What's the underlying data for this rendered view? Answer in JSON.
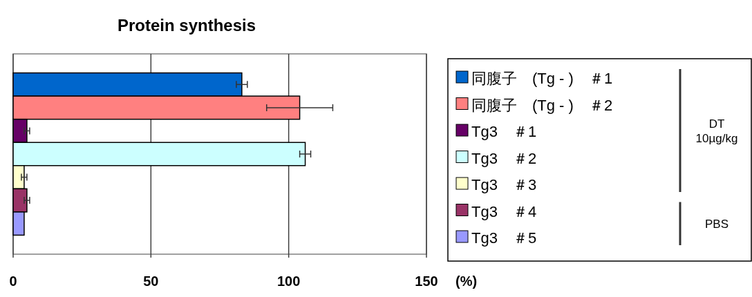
{
  "chart_data": {
    "type": "bar",
    "orientation": "horizontal",
    "title": "Protein synthesis",
    "xlabel": "(%)",
    "categories": [
      null
    ],
    "series": [
      {
        "name": "同腹子　(Tg - )　＃1",
        "color": "#0066cc",
        "values": [
          83
        ],
        "errors": [
          2
        ]
      },
      {
        "name": "同腹子　(Tg - )　＃2",
        "color": "#ff8080",
        "values": [
          104
        ],
        "errors": [
          12
        ]
      },
      {
        "name": "Tg3　＃1",
        "color": "#660066",
        "values": [
          5
        ],
        "errors": [
          1
        ]
      },
      {
        "name": "Tg3　＃2",
        "color": "#ccffff",
        "values": [
          106
        ],
        "errors": [
          2
        ]
      },
      {
        "name": "Tg3　＃3",
        "color": "#ffffcc",
        "values": [
          4
        ],
        "errors": [
          1
        ]
      },
      {
        "name": "Tg3　＃4",
        "color": "#993366",
        "values": [
          5
        ],
        "errors": [
          1
        ]
      },
      {
        "name": "Tg3　＃5",
        "color": "#9999ff",
        "values": [
          4
        ],
        "errors": [
          null
        ]
      }
    ],
    "xlim": [
      0,
      150
    ],
    "xticks": [
      0,
      50,
      100,
      150
    ],
    "grid": "x",
    "legend": "right",
    "annotations": [
      "DT\n10µg/kg",
      "PBS"
    ]
  }
}
